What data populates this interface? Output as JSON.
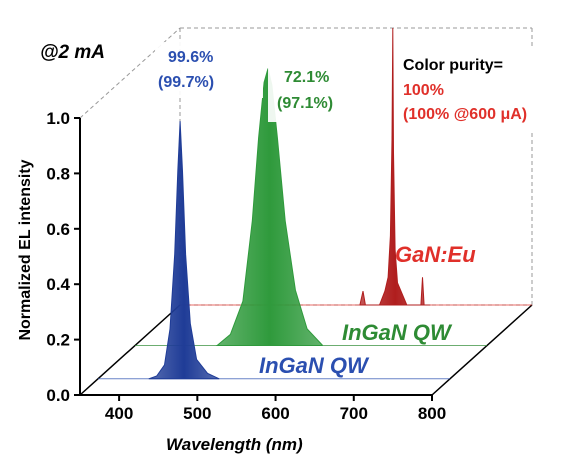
{
  "chart_data": {
    "type": "area",
    "title": "",
    "condition": "@2 mA",
    "xlabel": "Wavelength (nm)",
    "ylabel": "Normalized EL intensity",
    "xlim": [
      350,
      800
    ],
    "ylim": [
      0.0,
      1.0
    ],
    "x_ticks": [
      "400",
      "500",
      "600",
      "700",
      "800"
    ],
    "y_ticks": [
      "0.0",
      "0.2",
      "0.4",
      "0.6",
      "0.8",
      "1.0"
    ],
    "grid": false,
    "projection": "3d-waterfall",
    "series": [
      {
        "name": "InGaN QW",
        "color": "#1f3c97",
        "label_color": "#2b4fb0",
        "peak_nm": 455,
        "color_purity": "99.6%",
        "color_purity_alt": "(99.7%)",
        "points": [
          [
            415,
            0.0
          ],
          [
            425,
            0.01
          ],
          [
            435,
            0.05
          ],
          [
            442,
            0.18
          ],
          [
            448,
            0.45
          ],
          [
            452,
            0.75
          ],
          [
            455,
            0.93
          ],
          [
            458,
            0.75
          ],
          [
            462,
            0.45
          ],
          [
            468,
            0.2
          ],
          [
            476,
            0.07
          ],
          [
            490,
            0.02
          ],
          [
            505,
            0.0
          ]
        ]
      },
      {
        "name": "InGaN QW",
        "color": "#2f9a3c",
        "label_color": "#2e8b34",
        "peak_nm": 520,
        "color_purity": "72.1%",
        "color_purity_alt": "(97.1%)",
        "points": [
          [
            455,
            0.0
          ],
          [
            472,
            0.04
          ],
          [
            488,
            0.16
          ],
          [
            500,
            0.45
          ],
          [
            508,
            0.75
          ],
          [
            515,
            0.95
          ],
          [
            520,
            1.0
          ],
          [
            525,
            0.94
          ],
          [
            532,
            0.75
          ],
          [
            542,
            0.45
          ],
          [
            555,
            0.2
          ],
          [
            570,
            0.06
          ],
          [
            590,
            0.0
          ]
        ]
      },
      {
        "name": "GaN:Eu",
        "color": "#b01e1e",
        "label_color": "#e0302a",
        "peak_nm": 622,
        "color_purity_label": "Color purity=",
        "color_purity": "100%",
        "color_purity_alt": "(100% @600 μA)",
        "points": [
          [
            580,
            0.0
          ],
          [
            584,
            0.05
          ],
          [
            587,
            0.0
          ],
          [
            605,
            0.0
          ],
          [
            612,
            0.05
          ],
          [
            616,
            0.1
          ],
          [
            619,
            0.25
          ],
          [
            621,
            0.6
          ],
          [
            622,
            1.0
          ],
          [
            623,
            0.55
          ],
          [
            625,
            0.2
          ],
          [
            628,
            0.08
          ],
          [
            640,
            0.0
          ],
          [
            658,
            0.0
          ],
          [
            660,
            0.1
          ],
          [
            662,
            0.0
          ],
          [
            670,
            0.0
          ]
        ]
      }
    ]
  }
}
